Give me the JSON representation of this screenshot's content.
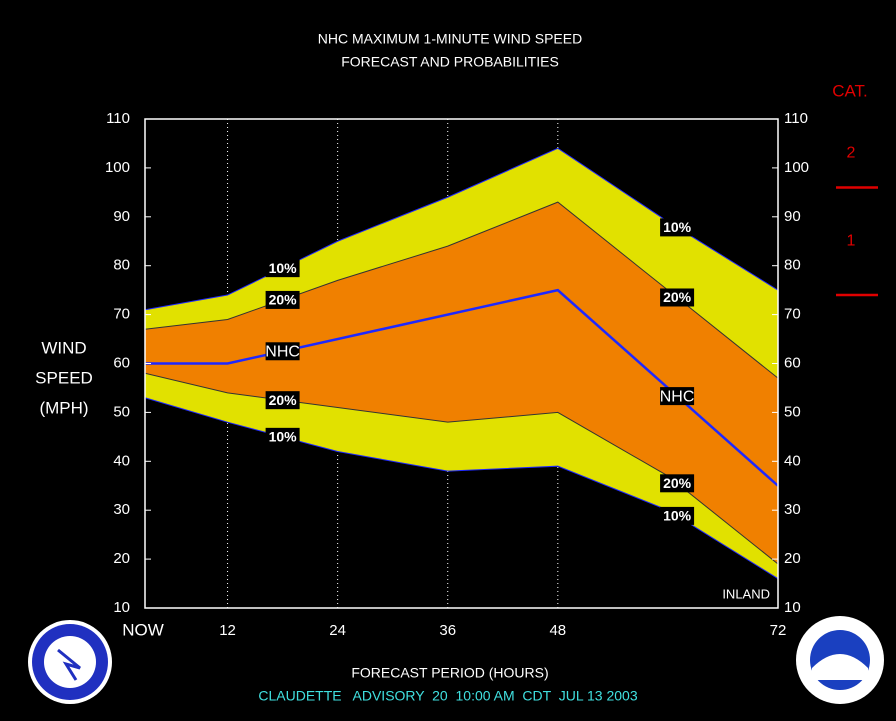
{
  "chart_data": {
    "type": "band",
    "title": "NHC MAXIMUM 1-MINUTE WIND SPEED",
    "subtitle": "FORECAST AND PROBABILITIES",
    "y_label": [
      "WIND",
      "SPEED",
      "(MPH)"
    ],
    "x_label": "FORECAST PERIOD (HOURS)",
    "footer": "CLAUDETTE   ADVISORY  20  10:00 AM  CDT  JUL 13 2003",
    "annotation": "INLAND",
    "xlim": [
      3,
      72
    ],
    "xticks": [
      {
        "value": 3,
        "label": "NOW"
      },
      12,
      24,
      36,
      48,
      72
    ],
    "ylim": [
      10,
      110
    ],
    "yticks": [
      10,
      20,
      30,
      40,
      50,
      60,
      70,
      80,
      90,
      100,
      110
    ],
    "series": [
      {
        "name": "10%",
        "color": "#e1e100",
        "x": [
          3,
          12,
          24,
          36,
          48,
          60,
          72
        ],
        "values": [
          71,
          74,
          85,
          94,
          104,
          89,
          75
        ]
      },
      {
        "name": "10%",
        "color": "#e1e100",
        "x": [
          3,
          12,
          24,
          36,
          48,
          60,
          72
        ],
        "values": [
          53,
          48,
          42,
          38,
          39,
          30,
          16
        ]
      },
      {
        "name": "20%",
        "color": "#f08000",
        "x": [
          3,
          12,
          24,
          36,
          48,
          60,
          72
        ],
        "values": [
          67,
          69,
          77,
          84,
          93,
          75,
          57
        ]
      },
      {
        "name": "20%",
        "color": "#f08000",
        "x": [
          3,
          12,
          24,
          36,
          48,
          60,
          72
        ],
        "values": [
          58,
          54,
          51,
          48,
          50,
          37,
          19
        ]
      },
      {
        "name": "NHC",
        "color": "#1e28ff",
        "x": [
          3,
          12,
          48,
          72
        ],
        "values": [
          60,
          60,
          75,
          35
        ]
      }
    ],
    "category_scale": {
      "title": "CAT.",
      "color": "#e00000",
      "levels": [
        {
          "label": "2",
          "threshold": 96
        },
        {
          "label": "1",
          "threshold": 74
        }
      ]
    }
  }
}
